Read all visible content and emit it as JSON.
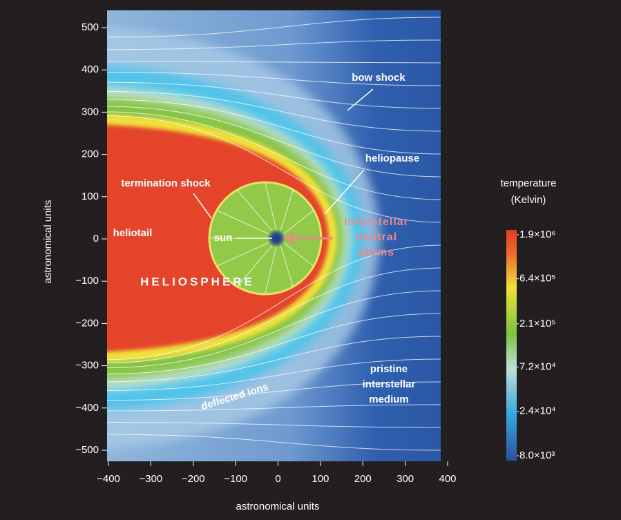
{
  "chart_data": {
    "type": "field",
    "xlabel": "astronomical units",
    "ylabel": "astronomical units",
    "xlim": [
      -400,
      400
    ],
    "ylim": [
      -500,
      500
    ],
    "xticks": [
      {
        "value": -400,
        "label": "−400"
      },
      {
        "value": -300,
        "label": "−300"
      },
      {
        "value": -200,
        "label": "−200"
      },
      {
        "value": -100,
        "label": "−100"
      },
      0,
      100,
      200,
      300,
      400
    ],
    "yticks": [
      {
        "value": -500,
        "label": "−500"
      },
      {
        "value": -400,
        "label": "−400"
      },
      {
        "value": -300,
        "label": "−300"
      },
      {
        "value": -200,
        "label": "−200"
      },
      {
        "value": -100,
        "label": "−100"
      },
      0,
      100,
      200,
      300,
      400,
      500
    ],
    "annotations": [
      "bow shock",
      "heliopause",
      "termination shock",
      "heliotail",
      "sun",
      "HELIOSPHERE",
      [
        "interstellar",
        "neutral",
        "atoms"
      ],
      "deflected ions",
      [
        "pristine",
        "interstellar",
        "medium"
      ]
    ],
    "colorbar": {
      "title": [
        "temperature",
        "(Kelvin)"
      ],
      "log": true,
      "lim": [
        8000,
        1900000
      ],
      "ticks": [
        {
          "value": 1900000,
          "label": "1.9×10⁶"
        },
        {
          "value": 640000,
          "label": "6.4×10⁵"
        },
        {
          "value": 210000,
          "label": "2.1×10⁵"
        },
        {
          "value": 72000,
          "label": "7.2×10⁴"
        },
        {
          "value": 24000,
          "label": "2.4×10⁴"
        },
        {
          "value": 8000,
          "label": "8.0×10³"
        }
      ]
    }
  }
}
